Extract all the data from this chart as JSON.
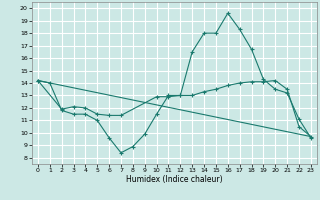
{
  "xlabel": "Humidex (Indice chaleur)",
  "xlim": [
    -0.5,
    23.5
  ],
  "ylim": [
    7.5,
    20.5
  ],
  "yticks": [
    8,
    9,
    10,
    11,
    12,
    13,
    14,
    15,
    16,
    17,
    18,
    19,
    20
  ],
  "xticks": [
    0,
    1,
    2,
    3,
    4,
    5,
    6,
    7,
    8,
    9,
    10,
    11,
    12,
    13,
    14,
    15,
    16,
    17,
    18,
    19,
    20,
    21,
    22,
    23
  ],
  "bg_color": "#cce8e5",
  "grid_color": "#ffffff",
  "line_color": "#1a7a6e",
  "line1_x": [
    0,
    1,
    2,
    3,
    4,
    5,
    6,
    7,
    8,
    9,
    10,
    11,
    12,
    13,
    14,
    15,
    16,
    17,
    18,
    19,
    20,
    21,
    22,
    23
  ],
  "line1_y": [
    14.2,
    14.0,
    11.8,
    11.5,
    11.5,
    11.0,
    9.6,
    8.4,
    8.9,
    9.9,
    11.5,
    13.0,
    13.0,
    16.5,
    18.0,
    18.0,
    19.6,
    18.3,
    16.7,
    14.3,
    13.5,
    13.2,
    11.1,
    9.6
  ],
  "line2_x": [
    0,
    2,
    3,
    4,
    5,
    6,
    7,
    10,
    11,
    12,
    13,
    14,
    15,
    16,
    17,
    18,
    19,
    20,
    21,
    22,
    23
  ],
  "line2_y": [
    14.2,
    11.9,
    12.1,
    12.0,
    11.5,
    11.4,
    11.4,
    12.9,
    12.9,
    13.0,
    13.0,
    13.3,
    13.5,
    13.8,
    14.0,
    14.1,
    14.1,
    14.2,
    13.5,
    10.5,
    9.7
  ],
  "line3_x": [
    0,
    23
  ],
  "line3_y": [
    14.2,
    9.7
  ]
}
